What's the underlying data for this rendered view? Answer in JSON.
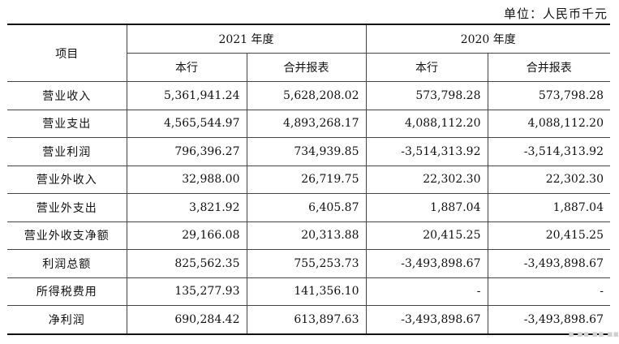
{
  "unit_label": "单位：人民币千元",
  "header": {
    "item": "项目",
    "year_2021": "2021 年度",
    "year_2020": "2020 年度",
    "bank": "本行",
    "consolidated": "合并报表"
  },
  "rows": [
    {
      "label": "营业收入",
      "v2021_bank": "5,361,941.24",
      "v2021_cons": "5,628,208.02",
      "v2020_bank": "573,798.28",
      "v2020_cons": "573,798.28"
    },
    {
      "label": "营业支出",
      "v2021_bank": "4,565,544.97",
      "v2021_cons": "4,893,268.17",
      "v2020_bank": "4,088,112.20",
      "v2020_cons": "4,088,112.20"
    },
    {
      "label": "营业利润",
      "v2021_bank": "796,396.27",
      "v2021_cons": "734,939.85",
      "v2020_bank": "-3,514,313.92",
      "v2020_cons": "-3,514,313.92"
    },
    {
      "label": "营业外收入",
      "v2021_bank": "32,988.00",
      "v2021_cons": "26,719.75",
      "v2020_bank": "22,302.30",
      "v2020_cons": "22,302.30"
    },
    {
      "label": "营业外支出",
      "v2021_bank": "3,821.92",
      "v2021_cons": "6,405.87",
      "v2020_bank": "1,887.04",
      "v2020_cons": "1,887.04"
    },
    {
      "label": "营业外收支净额",
      "v2021_bank": "29,166.08",
      "v2021_cons": "20,313.88",
      "v2020_bank": "20,415.25",
      "v2020_cons": "20,415.25"
    },
    {
      "label": "利润总额",
      "v2021_bank": "825,562.35",
      "v2021_cons": "755,253.73",
      "v2020_bank": "-3,493,898.67",
      "v2020_cons": "-3,493,898.67"
    },
    {
      "label": "所得税费用",
      "v2021_bank": "135,277.93",
      "v2021_cons": "141,356.10",
      "v2020_bank": "-",
      "v2020_cons": "-"
    },
    {
      "label": "净利润",
      "v2021_bank": "690,284.42",
      "v2021_cons": "613,897.63",
      "v2020_bank": "-3,493,898.67",
      "v2020_cons": "-3,493,898.67"
    }
  ]
}
